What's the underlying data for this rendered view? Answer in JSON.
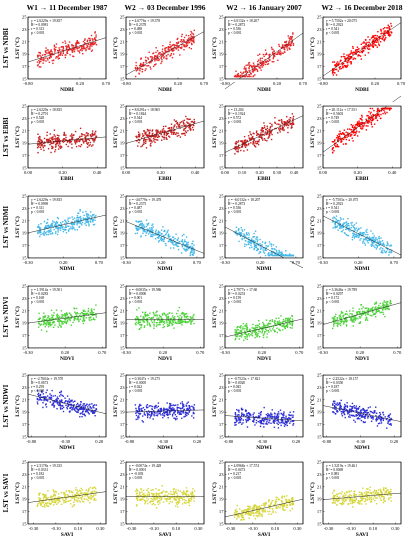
{
  "headers": [
    "W1 → 11 December 1987",
    "W2 → 03 December 1996",
    "W2 → 16 January 2007",
    "W2 → 16 December 2018"
  ],
  "y_axis_label": "LST (°C)",
  "y_ticks": [
    15,
    17,
    19,
    21,
    23,
    25
  ],
  "rows": [
    {
      "label": "LST vs NDBI",
      "index": "NDBI",
      "x_ticks": [
        "-0.80",
        "0.20",
        "0.70"
      ],
      "x_ticks_by_panel": [
        [
          "-0.80",
          "0.20",
          "0.70"
        ],
        [
          "-0.80",
          "0.20",
          "0.70"
        ],
        [
          "-0.80",
          "0.20",
          "0.70"
        ],
        [
          "-0.80",
          "0.20",
          "0.70"
        ]
      ],
      "color": "#e8282a",
      "panels": [
        {
          "stats": [
            "y = 2.6229x + 19.837",
            "R² = 0.0981",
            "r = 0.313",
            "p < 0.001"
          ]
        },
        {
          "stats": [
            "y = 4.6776x + 19.378",
            "R² = 0.2378",
            "r = 0.488",
            "p < 0.001"
          ]
        },
        {
          "stats": [
            "y = 6.0132x + 18.207",
            "R² = 0.2873",
            "r = 0.536",
            "p < 0.001"
          ]
        },
        {
          "stats": [
            "y = 5.7502x + 20.075",
            "R² = 0.2923",
            "r = 0.541",
            "p < 0.001"
          ]
        }
      ]
    },
    {
      "label": "LST vs EBBI",
      "index": "EBBI",
      "x_ticks": [
        "0.00",
        "0.20",
        "0.40"
      ],
      "x_ticks_by_panel": [
        [
          "0.00",
          "0.20",
          "0.40"
        ],
        [
          "0.00",
          "0.20",
          "0.40"
        ],
        [
          "0.00",
          "0.10",
          "0.20",
          "0.30",
          "0.40"
        ],
        [
          "0.00",
          "0.20",
          "0.40"
        ]
      ],
      "color": "#c41e1e",
      "panels": [
        {
          "stats": [
            "y = 2.6229x + 18.835",
            "R² = 0.2791",
            "r = 0.528",
            "p < 0.001"
          ]
        },
        {
          "stats": [
            "y = 8.0291x + 18.965",
            "R² = 0.1844",
            "r = 0.544",
            "p < 0.001"
          ]
        },
        {
          "stats": [
            "y = 13.204",
            "R² = 0.1924",
            "r = 0.572",
            "p < 0.001"
          ]
        },
        {
          "stats": [
            "y = 20.112x + 17.551",
            "R² = 0.5603",
            "r = 0.749",
            "p < 0.001"
          ]
        }
      ]
    },
    {
      "label": "LST vs NDMI",
      "index": "NDMI",
      "x_ticks": [
        "-0.30",
        "0.20",
        "0.70"
      ],
      "x_ticks_by_panel": [
        [
          "-0.30",
          "0.20",
          "0.70"
        ],
        [
          "-0.30",
          "0.20",
          "0.70",
          "1.20"
        ],
        [
          "-0.30",
          "0.20",
          "0.70"
        ],
        [
          "-0.30",
          "0.20",
          "0.70"
        ]
      ],
      "color": "#45b8e8",
      "panels": [
        {
          "stats": [
            "y = 2.6229x + 19.835",
            "R² = 0.0969",
            "r = 0.311",
            "p < 0.001"
          ]
        },
        {
          "stats": [
            "y = -4.6779x + 19.478",
            "R² = 0.2375",
            "r = 0.487",
            "p < 0.001"
          ]
        },
        {
          "stats": [
            "y = -6.0132x + 18.207",
            "R² = 0.2873",
            "r = 0.536",
            "p < 0.001"
          ]
        },
        {
          "stats": [
            "y = -5.7503x + 20.075",
            "R² = 0.2923",
            "r = 0.541",
            "p < 0.001"
          ]
        }
      ]
    },
    {
      "label": "LST vs NDVI",
      "index": "NDVI",
      "x_ticks": [
        "-0.30",
        "0.20",
        "0.70"
      ],
      "x_ticks_by_panel": [
        [
          "-0.30",
          "0.20",
          "0.70"
        ],
        [
          "-0.30",
          "0.20",
          "0.70"
        ],
        [
          "-0.30",
          "0.20",
          "0.70"
        ],
        [
          "-0.30",
          "0.20",
          "0.70"
        ]
      ],
      "color": "#4fd23c",
      "panels": [
        {
          "stats": [
            "y = 1.5914x + 19.501",
            "R² = 0.0283",
            "r = 0.168",
            "p < 0.001"
          ]
        },
        {
          "stats": [
            "y = -0.0035x + 19.586",
            "R² = 0.0000",
            "r = 0.001",
            "p < 0.001"
          ]
        },
        {
          "stats": [
            "y = 2.7977x + 17.60",
            "R² = 0.0253",
            "r = 0.159",
            "p < 0.001"
          ]
        },
        {
          "stats": [
            "y = 3.3646x + 19.789",
            "R² = 0.0297",
            "r = 0.172",
            "p < 0.001"
          ]
        }
      ]
    },
    {
      "label": "LST vs NDWI",
      "index": "NDWI",
      "x_ticks": [
        "-0.80",
        "-0.30",
        "0.20"
      ],
      "x_ticks_by_panel": [
        [
          "-0.80",
          "-0.30",
          "0.20"
        ],
        [
          "-0.80",
          "-0.30",
          "0.20"
        ],
        [
          "-0.80",
          "-0.30",
          "0.20"
        ],
        [
          "-0.80",
          "-0.30",
          "0.20"
        ]
      ],
      "color": "#2d2ed6",
      "panels": [
        {
          "stats": [
            "y = -2.7604x + 19.570",
            "R² = 0.0673",
            "r = 0.259",
            "p < 0.001"
          ]
        },
        {
          "stats": [
            "y = 0.3047x + 19.275",
            "R² = 0.0005",
            "r = 0.022",
            "p < 0.001"
          ]
        },
        {
          "stats": [
            "y = -0.7523x + 17.821",
            "R² = 0.0020",
            "r = 0.045",
            "p < 0.001"
          ]
        },
        {
          "stats": [
            "y = -2.2522x + 18.157",
            "R² = 0.0350",
            "r = 0.187",
            "p < 0.001"
          ]
        }
      ]
    },
    {
      "label": "LST vs SAVI",
      "index": "SAVI",
      "x_ticks": [
        "-0.30",
        "-0.10",
        "0.10",
        "0.30"
      ],
      "x_ticks_by_panel": [
        [
          "-0.30",
          "-0.10",
          "0.10",
          "0.30"
        ],
        [
          "-0.30",
          "-0.10",
          "0.10",
          "0.30"
        ],
        [
          "-0.30",
          "-0.10",
          "0.10",
          "0.30"
        ],
        [
          "-0.30",
          "-0.10",
          "0.10",
          "0.30"
        ]
      ],
      "color": "#d6d63a",
      "panels": [
        {
          "stats": [
            "y = 2.5178x + 19.335",
            "R² = 0.0331",
            "r = 0.182",
            "p < 0.001"
          ]
        },
        {
          "stats": [
            "y = -0.0074x + 19.428",
            "R² = 0.0001",
            "r = -0.003",
            "p < 0.001"
          ]
        },
        {
          "stats": [
            "y = 4.0968x + 17.574",
            "R² = 0.0473",
            "r = 0.217",
            "p < 0.001"
          ]
        },
        {
          "stats": [
            "y = 1.5219x + 19.461",
            "R² = 0.0069",
            "r = 0.083",
            "p < 0.001"
          ]
        }
      ]
    }
  ],
  "chart_data": {
    "type": "scatter",
    "layout": "grid 6 rows × 4 columns",
    "columns": [
      "W1 → 11 December 1987",
      "W2 → 03 December 1996",
      "W2 → 16 January 2007",
      "W2 → 16 December 2018"
    ],
    "rows": [
      "LST vs NDBI",
      "LST vs EBBI",
      "LST vs NDMI",
      "LST vs NDVI",
      "LST vs NDWI",
      "LST vs SAVI"
    ],
    "ylabel": "LST (°C)",
    "ylim": [
      15,
      25
    ],
    "grid": false,
    "regressions": [
      [
        {
          "slope": 2.6229,
          "intercept": 19.837,
          "r2": 0.0981,
          "r": 0.313
        },
        {
          "slope": 4.6776,
          "intercept": 19.378,
          "r2": 0.2378,
          "r": 0.488
        },
        {
          "slope": 6.0132,
          "intercept": 18.207,
          "r2": 0.2873,
          "r": 0.536
        },
        {
          "slope": 5.7502,
          "intercept": 20.075,
          "r2": 0.2923,
          "r": 0.541
        }
      ],
      [
        {
          "slope": 2.6229,
          "intercept": 18.835,
          "r2": 0.2791,
          "r": 0.528
        },
        {
          "slope": 8.0291,
          "intercept": 18.965,
          "r2": 0.1844,
          "r": 0.544
        },
        {
          "slope": 13.204,
          "intercept": 17.5,
          "r2": 0.1924,
          "r": 0.572
        },
        {
          "slope": 20.112,
          "intercept": 17.551,
          "r2": 0.5603,
          "r": 0.749
        }
      ],
      [
        {
          "slope": 2.6229,
          "intercept": 19.835,
          "r2": 0.0969,
          "r": 0.311
        },
        {
          "slope": -4.6779,
          "intercept": 19.478,
          "r2": 0.2375,
          "r": 0.487
        },
        {
          "slope": -6.0132,
          "intercept": 18.207,
          "r2": 0.2873,
          "r": 0.536
        },
        {
          "slope": -5.7503,
          "intercept": 20.075,
          "r2": 0.2923,
          "r": 0.541
        }
      ],
      [
        {
          "slope": 1.5914,
          "intercept": 19.501,
          "r2": 0.0283,
          "r": 0.168
        },
        {
          "slope": -0.0035,
          "intercept": 19.586,
          "r2": 0.0,
          "r": 0.001
        },
        {
          "slope": 2.7977,
          "intercept": 17.6,
          "r2": 0.0253,
          "r": 0.159
        },
        {
          "slope": 3.3646,
          "intercept": 19.789,
          "r2": 0.0297,
          "r": 0.172
        }
      ],
      [
        {
          "slope": -2.7604,
          "intercept": 19.57,
          "r2": 0.0673,
          "r": 0.259
        },
        {
          "slope": 0.3047,
          "intercept": 19.275,
          "r2": 0.0005,
          "r": 0.022
        },
        {
          "slope": -0.7523,
          "intercept": 17.821,
          "r2": 0.002,
          "r": 0.045
        },
        {
          "slope": -2.2522,
          "intercept": 18.157,
          "r2": 0.035,
          "r": 0.187
        }
      ],
      [
        {
          "slope": 2.5178,
          "intercept": 19.335,
          "r2": 0.0331,
          "r": 0.182
        },
        {
          "slope": -0.0074,
          "intercept": 19.428,
          "r2": 0.0001,
          "r": -0.003
        },
        {
          "slope": 4.0968,
          "intercept": 17.574,
          "r2": 0.0473,
          "r": 0.217
        },
        {
          "slope": 1.5219,
          "intercept": 19.461,
          "r2": 0.0069,
          "r": 0.083
        }
      ]
    ],
    "colors": {
      "NDBI": "#e8282a",
      "EBBI": "#c41e1e",
      "NDMI": "#45b8e8",
      "NDVI": "#4fd23c",
      "NDWI": "#2d2ed6",
      "SAVI": "#d6d63a",
      "highlight_2018": "#ff0000"
    }
  }
}
